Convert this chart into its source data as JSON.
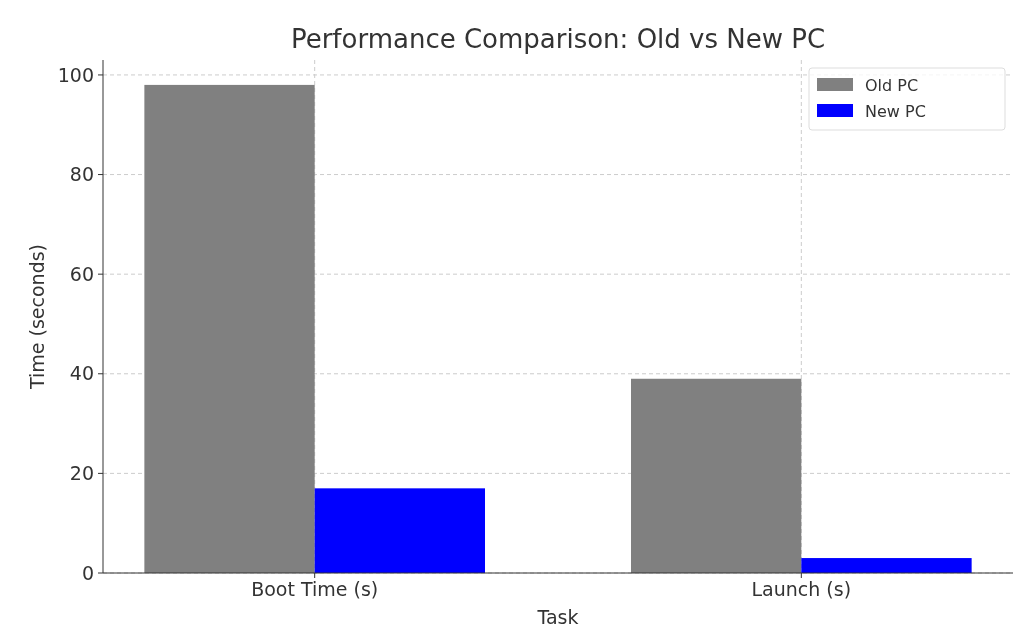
{
  "chart_data": {
    "type": "bar",
    "title": "Performance Comparison: Old vs New PC",
    "xlabel": "Task",
    "ylabel": "Time (seconds)",
    "categories": [
      "Boot Time (s)",
      "Launch (s)"
    ],
    "series": [
      {
        "name": "Old PC",
        "color": "#808080",
        "values": [
          98,
          39
        ]
      },
      {
        "name": "New PC",
        "color": "#0000ff",
        "values": [
          17,
          3
        ]
      }
    ],
    "ylim": [
      0,
      103
    ],
    "yticks": [
      0,
      20,
      40,
      60,
      80,
      100
    ],
    "grid": true,
    "legend": "top right"
  }
}
